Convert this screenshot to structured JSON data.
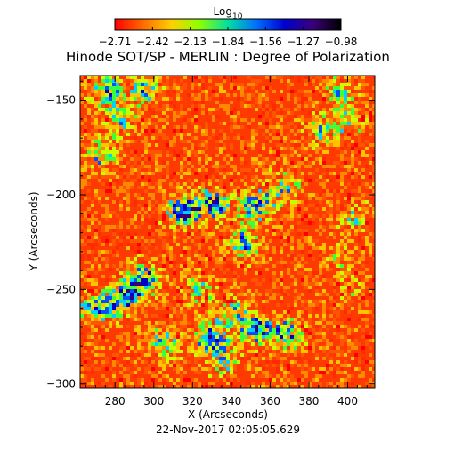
{
  "chart_data": {
    "type": "heatmap",
    "title": "Hinode SOT/SP - MERLIN : Degree of Polarization",
    "colorbar": {
      "label_base": "Log",
      "label_sub": "10",
      "ticks": [
        "-2.71",
        "-2.42",
        "-2.13",
        "-1.84",
        "-1.56",
        "-1.27",
        "-0.98"
      ],
      "range": [
        -2.71,
        -0.98
      ],
      "colors": [
        "#ff0000",
        "#ff6a00",
        "#ffd000",
        "#8cff00",
        "#00e0a0",
        "#0070ff",
        "#0000d0",
        "#3a007a",
        "#000000"
      ]
    },
    "xlabel": "X (Arcseconds)",
    "ylabel": "Y (Arcseconds)",
    "xlim": [
      262,
      414
    ],
    "ylim": [
      -302,
      -137
    ],
    "xticks": [
      280,
      300,
      320,
      340,
      360,
      380,
      400
    ],
    "yticks": [
      -150,
      -200,
      -250,
      -300
    ],
    "strong_polarization_regions": [
      {
        "x": 314,
        "y": -208,
        "strength": 1.0
      },
      {
        "x": 330,
        "y": -204,
        "strength": 0.85
      },
      {
        "x": 352,
        "y": -205,
        "strength": 0.8
      },
      {
        "x": 366,
        "y": -195,
        "strength": 0.6
      },
      {
        "x": 345,
        "y": -225,
        "strength": 0.7
      },
      {
        "x": 295,
        "y": -242,
        "strength": 0.65
      },
      {
        "x": 287,
        "y": -252,
        "strength": 0.75
      },
      {
        "x": 322,
        "y": -249,
        "strength": 0.5
      },
      {
        "x": 340,
        "y": -262,
        "strength": 0.55
      },
      {
        "x": 328,
        "y": -275,
        "strength": 0.85
      },
      {
        "x": 352,
        "y": -270,
        "strength": 0.8
      },
      {
        "x": 368,
        "y": -272,
        "strength": 0.7
      },
      {
        "x": 305,
        "y": -277,
        "strength": 0.6
      },
      {
        "x": 277,
        "y": -258,
        "strength": 0.5
      },
      {
        "x": 266,
        "y": -260,
        "strength": 0.55
      },
      {
        "x": 272,
        "y": -178,
        "strength": 0.6
      },
      {
        "x": 282,
        "y": -160,
        "strength": 0.5
      },
      {
        "x": 275,
        "y": -144,
        "strength": 0.7
      },
      {
        "x": 294,
        "y": -144,
        "strength": 0.6
      },
      {
        "x": 395,
        "y": -145,
        "strength": 0.6
      },
      {
        "x": 385,
        "y": -165,
        "strength": 0.55
      },
      {
        "x": 400,
        "y": -160,
        "strength": 0.5
      },
      {
        "x": 402,
        "y": -210,
        "strength": 0.45
      },
      {
        "x": 395,
        "y": -232,
        "strength": 0.35
      },
      {
        "x": 335,
        "y": -287,
        "strength": 0.45
      },
      {
        "x": 400,
        "y": -250,
        "strength": 0.3
      }
    ]
  },
  "footer": {
    "timestamp": "22-Nov-2017 02:05:05.629"
  }
}
